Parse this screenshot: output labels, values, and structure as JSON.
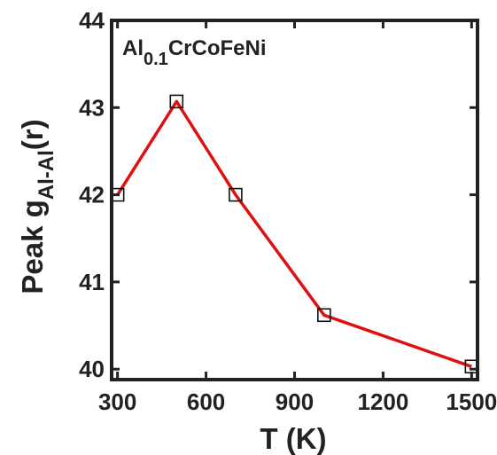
{
  "chart_data": {
    "type": "line",
    "title": "",
    "xlabel": "T (K)",
    "ylabel": {
      "main": "Peak g",
      "subscript": "Al-Al",
      "suffix": "(r)"
    },
    "annotation": {
      "main": "Al",
      "subscript": "0.1",
      "suffix": "CrCoFeNi"
    },
    "xlim": [
      280,
      1520
    ],
    "ylim": [
      39.88,
      44
    ],
    "xticks": [
      300,
      600,
      900,
      1200,
      1500
    ],
    "yticks": [
      40,
      41,
      42,
      43,
      44
    ],
    "grid": false,
    "legend": "none",
    "series": [
      {
        "x": [
          300,
          500,
          700,
          1000,
          1500
        ],
        "y": [
          42.0,
          43.07,
          42.0,
          40.62,
          40.03
        ],
        "line_color": "#dd1111",
        "marker": "square-open",
        "marker_color": "#111111"
      }
    ],
    "axis_color": "#222222"
  }
}
